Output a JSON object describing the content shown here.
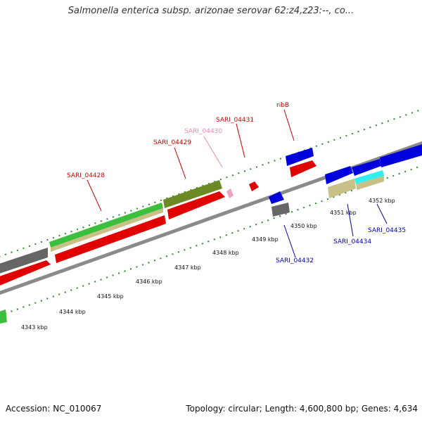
{
  "title": "Salmonella enterica subsp. arizonae serovar 62:z4,z23:--, co...",
  "footer": {
    "accession": "Accession: NC_010067",
    "summary": "Topology: circular; Length: 4,600,800 bp; Genes: 4,634"
  },
  "ticks": [
    "4343 kbp",
    "4344 kbp",
    "4345 kbp",
    "4346 kbp",
    "4347 kbp",
    "4348 kbp",
    "4349 kbp",
    "4350 kbp",
    "4351 kbp",
    "4352 kbp"
  ],
  "genes": [
    {
      "label": "SARI_04428",
      "color": "#cc0000"
    },
    {
      "label": "SARI_04429",
      "color": "#cc0000"
    },
    {
      "label": "SARI_04430",
      "color": "#ee88bb"
    },
    {
      "label": "SARI_04431",
      "color": "#cc0000"
    },
    {
      "label": "ribB",
      "color": "#cc0000"
    },
    {
      "label": "SARI_04432",
      "color": "#0000aa"
    },
    {
      "label": "SARI_04434",
      "color": "#0000aa"
    },
    {
      "label": "SARI_04435",
      "color": "#0000aa"
    }
  ]
}
